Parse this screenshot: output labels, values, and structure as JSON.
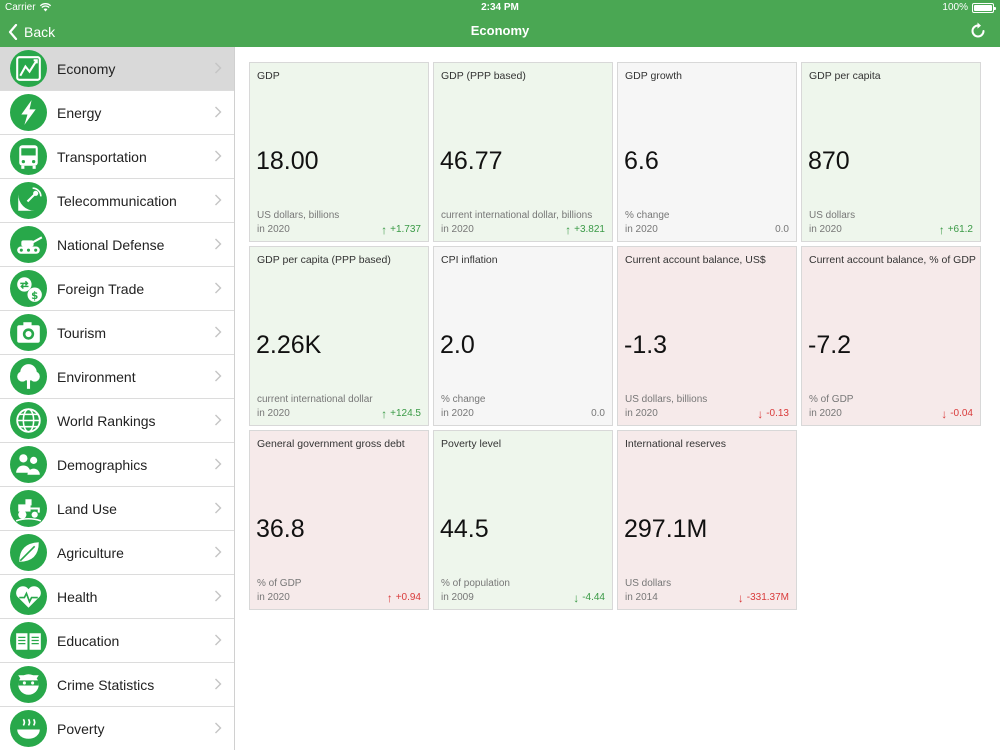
{
  "statusbar": {
    "carrier": "Carrier",
    "time": "2:34 PM",
    "battery": "100%"
  },
  "navbar": {
    "back_label": "Back",
    "title": "Economy"
  },
  "sidebar": {
    "items": [
      {
        "label": "Economy",
        "icon": "chart-icon",
        "active": true
      },
      {
        "label": "Energy",
        "icon": "lightning-icon"
      },
      {
        "label": "Transportation",
        "icon": "bus-icon"
      },
      {
        "label": "Telecommunication",
        "icon": "satellite-dish-icon"
      },
      {
        "label": "National Defense",
        "icon": "tank-icon"
      },
      {
        "label": "Foreign Trade",
        "icon": "exchange-icon"
      },
      {
        "label": "Tourism",
        "icon": "camera-icon"
      },
      {
        "label": "Environment",
        "icon": "tree-icon"
      },
      {
        "label": "World Rankings",
        "icon": "globe-icon"
      },
      {
        "label": "Demographics",
        "icon": "people-icon"
      },
      {
        "label": "Land Use",
        "icon": "tractor-icon"
      },
      {
        "label": "Agriculture",
        "icon": "leaf-icon"
      },
      {
        "label": "Health",
        "icon": "heart-pulse-icon"
      },
      {
        "label": "Education",
        "icon": "book-icon"
      },
      {
        "label": "Crime Statistics",
        "icon": "bandit-icon"
      },
      {
        "label": "Poverty",
        "icon": "bowl-icon"
      }
    ]
  },
  "tiles": [
    {
      "title": "GDP",
      "value": "18.00",
      "unit": "US dollars, billions",
      "year": "in 2020",
      "change": "+1.737",
      "arrow": "↑",
      "tone": "green",
      "change_style": "up-green"
    },
    {
      "title": "GDP (PPP based)",
      "value": "46.77",
      "unit": "current international dollar, billions",
      "year": "in 2020",
      "change": "+3.821",
      "arrow": "↑",
      "tone": "green",
      "change_style": "up-green"
    },
    {
      "title": "GDP growth",
      "value": "6.6",
      "unit": "% change",
      "year": "in 2020",
      "change": "0.0",
      "arrow": "",
      "tone": "gray",
      "change_style": "neutral"
    },
    {
      "title": "GDP per capita",
      "value": "870",
      "unit": "US dollars",
      "year": "in 2020",
      "change": "+61.2",
      "arrow": "↑",
      "tone": "green",
      "change_style": "up-green"
    },
    {
      "title": "GDP per capita (PPP based)",
      "value": "2.26K",
      "unit": "current international dollar",
      "year": "in 2020",
      "change": "+124.5",
      "arrow": "↑",
      "tone": "green",
      "change_style": "up-green"
    },
    {
      "title": "CPI inflation",
      "value": "2.0",
      "unit": "% change",
      "year": "in 2020",
      "change": "0.0",
      "arrow": "",
      "tone": "gray",
      "change_style": "neutral"
    },
    {
      "title": "Current account balance, US$",
      "value": "-1.3",
      "unit": "US dollars, billions",
      "year": "in 2020",
      "change": "-0.13",
      "arrow": "↓",
      "tone": "red",
      "change_style": "down-red"
    },
    {
      "title": "Current account balance, % of GDP",
      "value": "-7.2",
      "unit": "% of GDP",
      "year": "in 2020",
      "change": "-0.04",
      "arrow": "↓",
      "tone": "red",
      "change_style": "down-red"
    },
    {
      "title": "General government gross debt",
      "value": "36.8",
      "unit": "% of GDP",
      "year": "in 2020",
      "change": "+0.94",
      "arrow": "↑",
      "tone": "red",
      "change_style": "up-red"
    },
    {
      "title": "Poverty level",
      "value": "44.5",
      "unit": "% of population",
      "year": "in 2009",
      "change": "-4.44",
      "arrow": "↓",
      "tone": "green",
      "change_style": "down-green"
    },
    {
      "title": "International reserves",
      "value": "297.1M",
      "unit": "US dollars",
      "year": "in 2014",
      "change": "-331.37M",
      "arrow": "↓",
      "tone": "red",
      "change_style": "down-red"
    }
  ]
}
